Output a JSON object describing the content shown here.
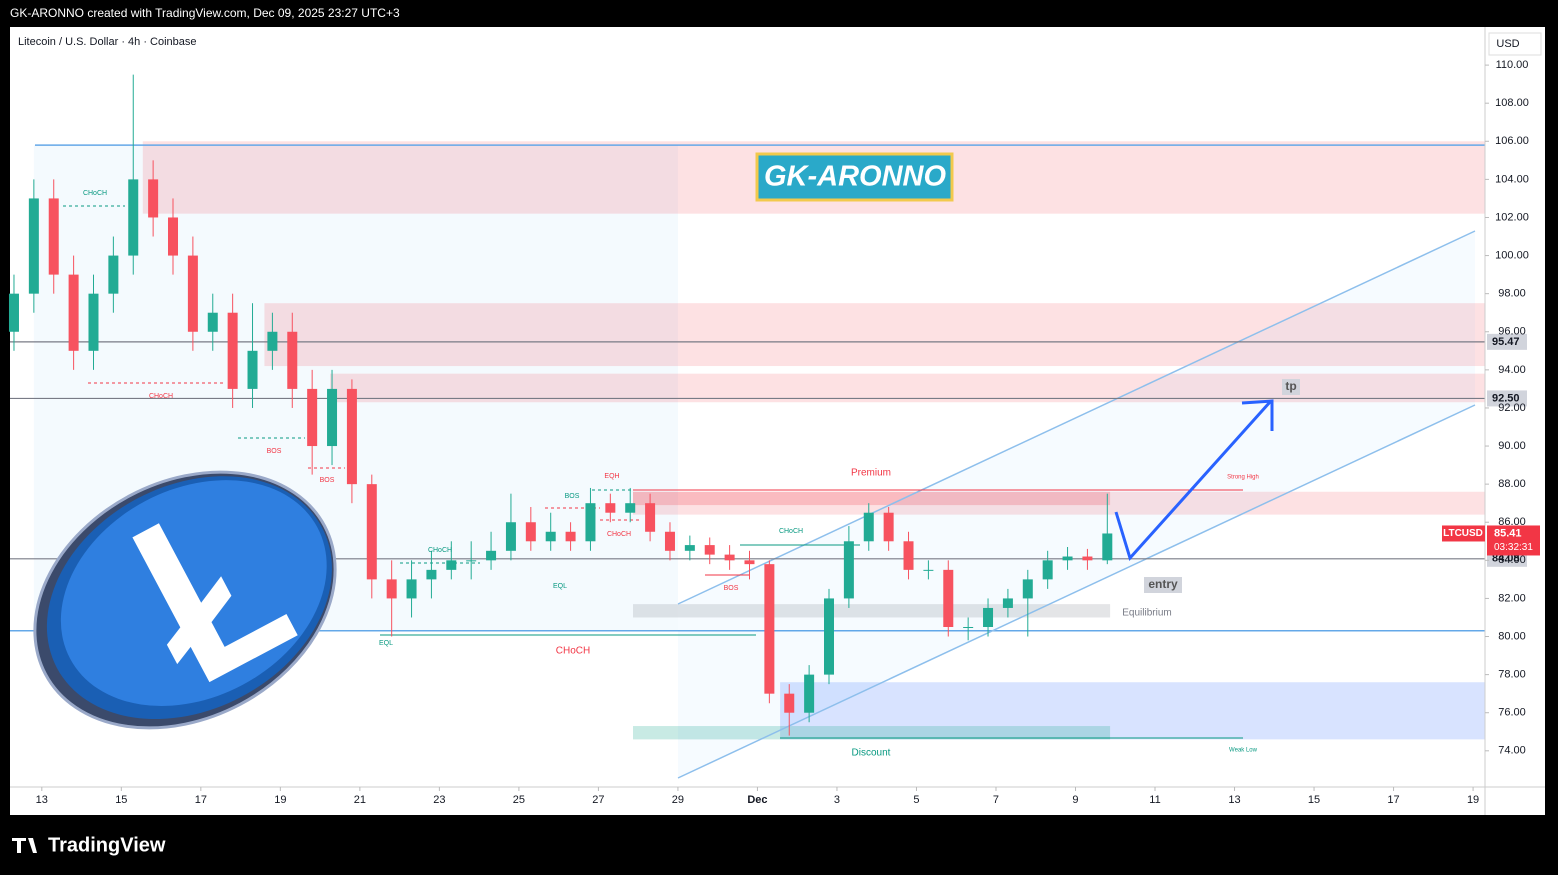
{
  "header": "GK-ARONNO created with TradingView.com, Dec 09, 2025 23:27 UTC+3",
  "footer": "TradingView",
  "chart_data": {
    "type": "candlestick",
    "title": "Litecoin / U.S. Dollar · 4h · Coinbase",
    "banner": "GK-ARONNO",
    "currency": "USD",
    "x": [
      -0.7,
      -0.2,
      0.3,
      0.8,
      1.3,
      1.8,
      2.3,
      2.8,
      3.3,
      3.8,
      4.3,
      4.8,
      5.3,
      5.8,
      6.3,
      6.8,
      7.3,
      7.8,
      8.3,
      8.8,
      9.3,
      9.8,
      10.3,
      10.8,
      11.3,
      11.8,
      12.3,
      12.8,
      13.3,
      13.8,
      14.3,
      14.8,
      15.3,
      15.8,
      16.3,
      16.8,
      17.3,
      17.8,
      18.3,
      18.8,
      19.3,
      19.8,
      20.3,
      20.8,
      21.3,
      21.8,
      22.3,
      22.8,
      23.3,
      23.8,
      24.3,
      24.8,
      25.3,
      25.8,
      26.3,
      26.8
    ],
    "open": [
      96,
      98,
      103,
      99,
      95,
      98,
      100,
      104,
      102,
      100,
      96,
      97,
      93,
      95,
      96,
      93,
      90,
      93,
      88,
      83,
      82,
      83,
      83.5,
      84,
      84,
      84.5,
      86,
      85,
      85.5,
      85,
      87,
      86.5,
      87,
      85.5,
      84.5,
      84.8,
      84.3,
      84,
      83.8,
      77,
      76,
      78,
      82,
      85,
      86.5,
      85,
      83.5,
      83.5,
      80.5,
      80.5,
      81.5,
      82,
      83,
      84,
      84.2,
      84
    ],
    "high": [
      99,
      104,
      104,
      100,
      99,
      101,
      109.5,
      105,
      103,
      101,
      98,
      98,
      97.5,
      97,
      97,
      94,
      94,
      93.5,
      88.5,
      84,
      84,
      84.5,
      85,
      85,
      85.5,
      87.5,
      86.8,
      86.5,
      86,
      87.8,
      87.5,
      87.8,
      87.5,
      86,
      85.3,
      85.2,
      84.8,
      84.5,
      84,
      77.5,
      78.5,
      82.5,
      85.8,
      87,
      86.8,
      85.5,
      84,
      84,
      81,
      82,
      82.5,
      83.5,
      84.5,
      84.7,
      84.6,
      87.5
    ],
    "low": [
      95,
      97,
      98,
      94,
      94,
      97,
      99,
      101,
      99,
      95,
      95,
      92,
      92,
      94,
      92,
      88.5,
      89,
      87,
      82,
      80,
      81,
      82,
      83,
      83,
      83.5,
      84,
      84.5,
      84.5,
      84.5,
      84.5,
      86,
      86,
      85,
      84,
      84,
      83.8,
      83.5,
      83,
      76.5,
      74.8,
      75.5,
      77.5,
      81.5,
      84.5,
      84.5,
      83,
      83,
      80,
      79.8,
      80,
      81,
      80,
      82.5,
      83.5,
      83.5,
      83.8
    ],
    "close": [
      98,
      103,
      99,
      95,
      98,
      100,
      104,
      102,
      100,
      96,
      97,
      93,
      95,
      96,
      93,
      90,
      93,
      88,
      83,
      82,
      83,
      83.5,
      84,
      84,
      84.5,
      86,
      85,
      85.5,
      85,
      87,
      86.5,
      87,
      85.5,
      84.5,
      84.8,
      84.3,
      84,
      83.8,
      77,
      76,
      78,
      82,
      85,
      86.5,
      85,
      83.5,
      83.5,
      80.5,
      80.5,
      81.5,
      82,
      83,
      84,
      84.2,
      84,
      85.41
    ],
    "up_color": "#22ab94",
    "down_color": "#f7525f",
    "xlim": [
      -0.8,
      36.3
    ],
    "xticks": [
      {
        "value": 0,
        "label": "13"
      },
      {
        "value": 2,
        "label": "15"
      },
      {
        "value": 4,
        "label": "17"
      },
      {
        "value": 6,
        "label": "19"
      },
      {
        "value": 8,
        "label": "21"
      },
      {
        "value": 10,
        "label": "23"
      },
      {
        "value": 12,
        "label": "25"
      },
      {
        "value": 14,
        "label": "27"
      },
      {
        "value": 16,
        "label": "29"
      },
      {
        "value": 18,
        "label": "Dec"
      },
      {
        "value": 20,
        "label": "3"
      },
      {
        "value": 22,
        "label": "5"
      },
      {
        "value": 24,
        "label": "7"
      },
      {
        "value": 26,
        "label": "9"
      },
      {
        "value": 28,
        "label": "11"
      },
      {
        "value": 30,
        "label": "13"
      },
      {
        "value": 32,
        "label": "15"
      },
      {
        "value": 34,
        "label": "17"
      },
      {
        "value": 36,
        "label": "19"
      }
    ],
    "ylim": [
      72.1,
      112
    ],
    "yticks": [
      {
        "value": 74,
        "label": "74.00"
      },
      {
        "value": 76,
        "label": "76.00"
      },
      {
        "value": 78,
        "label": "78.00"
      },
      {
        "value": 80,
        "label": "80.00"
      },
      {
        "value": 82,
        "label": "82.00"
      },
      {
        "value": 84,
        "label": "84.00"
      },
      {
        "value": 86,
        "label": "86.00"
      },
      {
        "value": 88,
        "label": "88.00"
      },
      {
        "value": 90,
        "label": "90.00"
      },
      {
        "value": 92,
        "label": "92.00"
      },
      {
        "value": 94,
        "label": "94.00"
      },
      {
        "value": 96,
        "label": "96.00"
      },
      {
        "value": 98,
        "label": "98.00"
      },
      {
        "value": 100,
        "label": "100.00"
      },
      {
        "value": 102,
        "label": "102.00"
      },
      {
        "value": 104,
        "label": "104.00"
      },
      {
        "value": 106,
        "label": "106.00"
      },
      {
        "value": 108,
        "label": "108.00"
      },
      {
        "value": 110,
        "label": "110.00"
      }
    ],
    "levels": [
      95.47,
      {
        "value": 92.5,
        "label": "92.50"
      },
      84.08
    ],
    "hlines": [
      105.8,
      80.3
    ],
    "last": {
      "symbol": "LTCUSD",
      "value": 85.41,
      "countdown": "03:32:31"
    },
    "zones": [
      {
        "x": [
          -0.2,
          16
        ],
        "y": [
          80.3,
          105.8
        ],
        "color": "rgba(33,150,243,0.05)"
      },
      {
        "x": [
          2.54,
          36.3
        ],
        "y": [
          102.2,
          106
        ],
        "color": "rgba(242,54,69,0.15)"
      },
      {
        "x": [
          5.6,
          36.3
        ],
        "y": [
          94.2,
          97.5
        ],
        "color": "rgba(242,54,69,0.15)"
      },
      {
        "x": [
          7.25,
          36.3
        ],
        "y": [
          92.3,
          93.8
        ],
        "color": "rgba(242,54,69,0.15)"
      },
      {
        "x": [
          14.87,
          36.3
        ],
        "y": [
          86.4,
          87.6
        ],
        "color": "rgba(242,54,69,0.15)"
      },
      {
        "x": [
          14.87,
          26.87
        ],
        "y": [
          86.9,
          87.6
        ],
        "color": "rgba(242,54,69,0.22)"
      },
      {
        "x": [
          14.87,
          26.87
        ],
        "y": [
          81,
          81.7
        ],
        "color": "rgba(120,123,134,0.2)"
      },
      {
        "x": [
          18.57,
          36.3
        ],
        "y": [
          74.6,
          77.6
        ],
        "color": "rgba(41,98,255,0.18)"
      },
      {
        "x": [
          14.87,
          26.87
        ],
        "y": [
          74.6,
          75.3
        ],
        "color": "rgba(34,171,148,0.25)"
      }
    ],
    "annotations": [
      "CHoCH",
      "CHoCH",
      "BOS",
      "BOS",
      "CHoCH",
      "BOS",
      "EQH",
      "CHoCH",
      "EQL",
      "EQL",
      "CHoCH",
      "BOS",
      "CHoCH",
      "Premium",
      "Equilibrium",
      "Discount",
      "Strong High",
      "Weak Low",
      "entry",
      "tp"
    ]
  }
}
